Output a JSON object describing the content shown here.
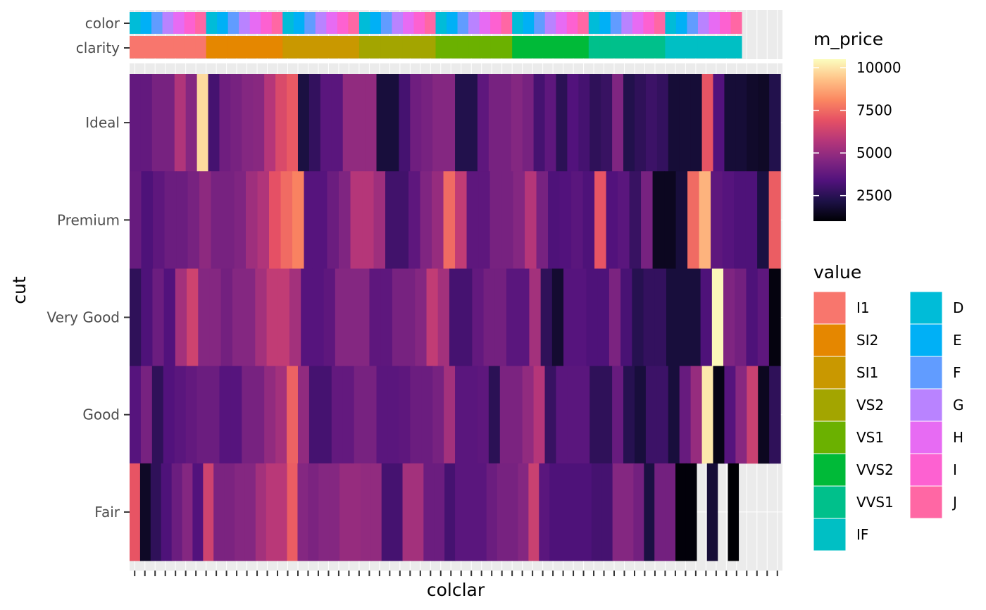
{
  "chart_data": {
    "type": "heatmap",
    "xlabel": "colclar",
    "ylabel": "cut",
    "rows": [
      "Ideal",
      "Premium",
      "Very Good",
      "Good",
      "Fair"
    ],
    "color_levels": [
      "D",
      "E",
      "F",
      "G",
      "H",
      "I",
      "J"
    ],
    "clarity_levels": [
      "I1",
      "SI2",
      "SI1",
      "VS2",
      "VS1",
      "VVS2",
      "VVS1",
      "IF"
    ],
    "annotation_rows": [
      "color",
      "clarity"
    ],
    "fill_legend": {
      "title": "m_price",
      "range": [
        1000,
        10500
      ],
      "breaks": [
        2500,
        5000,
        7500,
        10000
      ],
      "break_labels": [
        "2500",
        "5000",
        "7500",
        "10000"
      ],
      "palette": [
        "#000004",
        "#1d1147",
        "#51127c",
        "#822681",
        "#b73779",
        "#e65164",
        "#fb8861",
        "#fec287",
        "#fcfdbf"
      ]
    },
    "value_legend": {
      "title": "value",
      "entries": [
        {
          "label": "I1",
          "color": "#F8766D"
        },
        {
          "label": "SI2",
          "color": "#E58700"
        },
        {
          "label": "SI1",
          "color": "#C99800"
        },
        {
          "label": "VS2",
          "color": "#A3A500"
        },
        {
          "label": "VS1",
          "color": "#6BB100"
        },
        {
          "label": "VVS2",
          "color": "#00BA38"
        },
        {
          "label": "VVS1",
          "color": "#00C08B"
        },
        {
          "label": "IF",
          "color": "#00BFC4"
        },
        {
          "label": "D",
          "color": "#00BCD8"
        },
        {
          "label": "E",
          "color": "#00B0F6"
        },
        {
          "label": "F",
          "color": "#619CFF"
        },
        {
          "label": "G",
          "color": "#B983FF"
        },
        {
          "label": "H",
          "color": "#E76BF3"
        },
        {
          "label": "I",
          "color": "#FD61D1"
        },
        {
          "label": "J",
          "color": "#FF67A4"
        }
      ]
    },
    "values": {
      "Ideal": [
        3800,
        3800,
        4300,
        4300,
        5600,
        4600,
        9800,
        3100,
        4100,
        4300,
        4600,
        4700,
        5700,
        6600,
        7100,
        2100,
        2700,
        3600,
        3600,
        4900,
        4900,
        4900,
        2000,
        2000,
        3100,
        4100,
        4300,
        4600,
        4600,
        2300,
        2300,
        3700,
        4300,
        4300,
        4600,
        4300,
        3100,
        3700,
        2500,
        3400,
        3100,
        2600,
        2800,
        4500,
        2300,
        2600,
        2900,
        2700,
        1900,
        1900,
        1900,
        7000,
        3400,
        1900,
        1900,
        1700,
        1600,
        2300
      ],
      "Premium": [
        3900,
        3300,
        3700,
        4000,
        4000,
        4300,
        4800,
        4300,
        4300,
        4500,
        5200,
        5600,
        6900,
        7500,
        8000,
        3500,
        3500,
        4000,
        4500,
        5700,
        5700,
        5200,
        3000,
        3000,
        3700,
        4500,
        5000,
        7500,
        6000,
        3700,
        3700,
        4300,
        4300,
        4600,
        5700,
        4300,
        3300,
        3400,
        3600,
        3300,
        7000,
        3400,
        3600,
        2800,
        4300,
        1500,
        1500,
        2000,
        7500,
        9000,
        3700,
        3500,
        3300,
        3300,
        2100,
        7200
      ],
      "Very Good": [
        2600,
        3300,
        4000,
        3400,
        5300,
        6300,
        4600,
        4600,
        4200,
        4600,
        4600,
        5300,
        6000,
        6000,
        5300,
        3500,
        3500,
        3700,
        4600,
        4600,
        4600,
        3700,
        3700,
        4300,
        4300,
        4600,
        6000,
        5300,
        3100,
        3100,
        3800,
        4200,
        4200,
        3600,
        3600,
        5300,
        2600,
        1800,
        3500,
        3500,
        3300,
        3300,
        4400,
        3200,
        2400,
        2700,
        2700,
        2000,
        2000,
        2000,
        3300,
        10400,
        4500,
        4200,
        3300,
        3700,
        1200
      ],
      "Good": [
        3500,
        4300,
        2600,
        3400,
        3600,
        3800,
        4000,
        4000,
        3500,
        3500,
        4300,
        4300,
        4900,
        5300,
        7300,
        4900,
        3100,
        3100,
        3800,
        3800,
        4300,
        4300,
        3600,
        3600,
        3700,
        4000,
        4000,
        4300,
        5300,
        3600,
        3600,
        3700,
        2500,
        4400,
        4400,
        4900,
        5700,
        2800,
        3600,
        3600,
        3600,
        2600,
        2600,
        3900,
        2400,
        2000,
        2900,
        2900,
        2000,
        3900,
        5000,
        10100,
        1300,
        3500,
        4700,
        6200,
        1500,
        2600
      ],
      "Fair": [
        7000,
        1600,
        2600,
        3300,
        4000,
        4600,
        3400,
        6300,
        4400,
        4400,
        4600,
        4600,
        5300,
        5800,
        5800,
        7200,
        4600,
        4400,
        4600,
        4600,
        5000,
        5000,
        4900,
        4900,
        3100,
        3100,
        5300,
        5300,
        4000,
        4000,
        3100,
        3600,
        3600,
        3600,
        4000,
        4300,
        4300,
        4600,
        6200,
        3600,
        3300,
        3300,
        3300,
        3300,
        3100,
        3100,
        4600,
        4600,
        4200,
        2100,
        4200,
        4200,
        1100,
        1100,
        null,
        1900,
        null,
        1000,
        null,
        null,
        null,
        null
      ]
    }
  }
}
